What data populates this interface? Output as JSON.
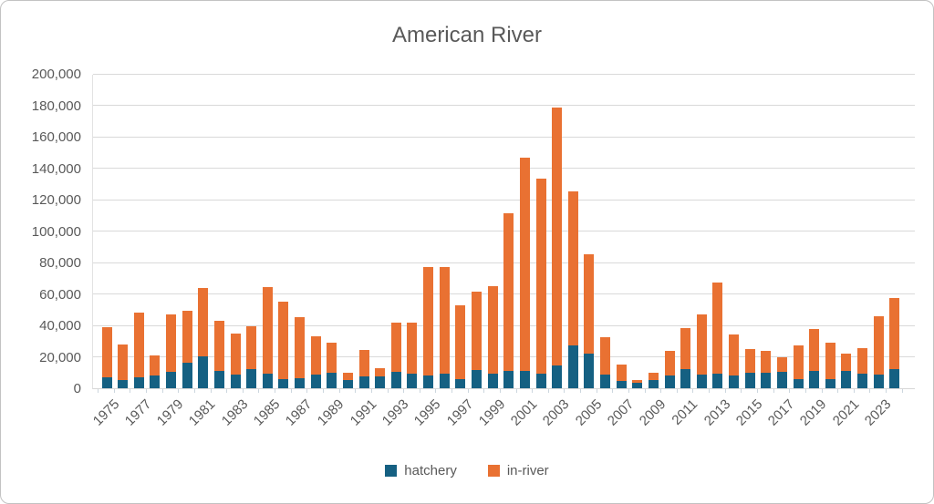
{
  "chart_data": {
    "type": "bar",
    "stacked": true,
    "title": "American River",
    "xlabel": "",
    "ylabel": "",
    "ylim": [
      0,
      200000
    ],
    "ytick_step": 20000,
    "grid": true,
    "legend_position": "bottom",
    "xtick_label_every": 2,
    "xtick_rotation": 45,
    "categories": [
      1975,
      1976,
      1977,
      1978,
      1979,
      1980,
      1981,
      1982,
      1983,
      1984,
      1985,
      1986,
      1987,
      1988,
      1989,
      1990,
      1991,
      1992,
      1993,
      1994,
      1995,
      1996,
      1997,
      1998,
      1999,
      2000,
      2001,
      2002,
      2003,
      2004,
      2005,
      2006,
      2007,
      2008,
      2009,
      2010,
      2011,
      2012,
      2013,
      2014,
      2015,
      2016,
      2017,
      2018,
      2019,
      2020,
      2021,
      2022,
      2023,
      2024
    ],
    "series": [
      {
        "name": "hatchery",
        "color": "#156082",
        "values": [
          7000,
          5500,
          7000,
          8000,
          10500,
          16000,
          20500,
          11000,
          8500,
          12000,
          9500,
          6000,
          6500,
          8500,
          10000,
          5000,
          7500,
          7500,
          10500,
          9000,
          8000,
          9000,
          6000,
          11500,
          9500,
          11000,
          11000,
          9500,
          14500,
          27000,
          22000,
          8500,
          4500,
          3500,
          5000,
          8000,
          12000,
          8500,
          9500,
          8000,
          10000,
          10000,
          10500,
          6000,
          11000,
          6000,
          11000,
          9500,
          8500,
          12000
        ]
      },
      {
        "name": "in-river",
        "color": "#E97132",
        "values": [
          32000,
          22500,
          41000,
          13000,
          36500,
          33500,
          43000,
          32000,
          26500,
          27500,
          55000,
          49000,
          39000,
          24500,
          19000,
          5000,
          17000,
          5000,
          31000,
          32500,
          69000,
          68000,
          46500,
          50000,
          55500,
          100500,
          135500,
          124000,
          164000,
          98000,
          63000,
          24000,
          10500,
          2000,
          5000,
          16000,
          26000,
          38500,
          57500,
          26500,
          15000,
          13500,
          9000,
          21000,
          26500,
          23000,
          11000,
          16000,
          37500,
          45500
        ]
      }
    ]
  },
  "colors": {
    "title_text": "#595959",
    "axis_text": "#595959",
    "gridline": "#d9d9d9",
    "frame_border": "#c2c2c2"
  }
}
